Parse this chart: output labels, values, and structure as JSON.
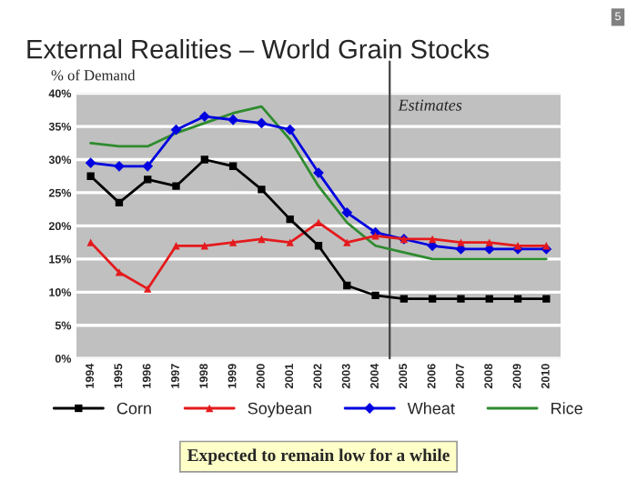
{
  "chart_data": {
    "type": "line",
    "title": "External Realities – World Grain Stocks",
    "ylabel": "% of Demand",
    "x": [
      1994,
      1995,
      1996,
      1997,
      1998,
      1999,
      2000,
      2001,
      2002,
      2003,
      2004,
      2005,
      2006,
      2007,
      2008,
      2009,
      2010
    ],
    "xlim": [
      1993.5,
      2010.5
    ],
    "xticks": [
      1994,
      1995,
      1996,
      1997,
      1998,
      1999,
      2000,
      2001,
      2002,
      2003,
      2004,
      2005,
      2006,
      2007,
      2008,
      2009,
      2010
    ],
    "ylim": [
      0,
      40
    ],
    "yticks": [
      {
        "value": 0,
        "label": "0%"
      },
      {
        "value": 5,
        "label": "5%"
      },
      {
        "value": 10,
        "label": "10%"
      },
      {
        "value": 15,
        "label": "15%"
      },
      {
        "value": 20,
        "label": "20%"
      },
      {
        "value": 25,
        "label": "25%"
      },
      {
        "value": 30,
        "label": "30%"
      },
      {
        "value": 35,
        "label": "35%"
      },
      {
        "value": 40,
        "label": "40%"
      }
    ],
    "grid": "y",
    "legend": "bottom",
    "series": [
      {
        "name": "Corn",
        "color": "#000000",
        "marker": "square",
        "values": [
          27.5,
          23.5,
          27,
          26,
          30,
          29,
          25.5,
          21,
          17,
          11,
          9.5,
          9,
          9,
          9,
          9,
          9,
          9
        ]
      },
      {
        "name": "Soybean",
        "color": "#e41a1c",
        "marker": "triangle",
        "values": [
          17.5,
          13,
          10.5,
          17,
          17,
          17.5,
          18,
          17.5,
          20.5,
          17.5,
          18.5,
          18,
          18,
          17.5,
          17.5,
          17,
          17
        ]
      },
      {
        "name": "Wheat",
        "color": "#0000e0",
        "marker": "diamond",
        "values": [
          29.5,
          29,
          29,
          34.5,
          36.5,
          36,
          35.5,
          34.5,
          28,
          22,
          19,
          18,
          17,
          16.5,
          16.5,
          16.5,
          16.5
        ]
      },
      {
        "name": "Rice",
        "color": "#2e8b2e",
        "marker": "none",
        "values": [
          32.5,
          32,
          32,
          34,
          35.5,
          37,
          38,
          33,
          26,
          20.5,
          17,
          16,
          15,
          15,
          15,
          15,
          15
        ]
      }
    ],
    "ref_lines": [
      {
        "axis": "x",
        "value": 2004.5,
        "label": "Estimates",
        "color": "#404040"
      }
    ],
    "annotations": [
      "Expected to remain low for a while",
      "5"
    ]
  }
}
